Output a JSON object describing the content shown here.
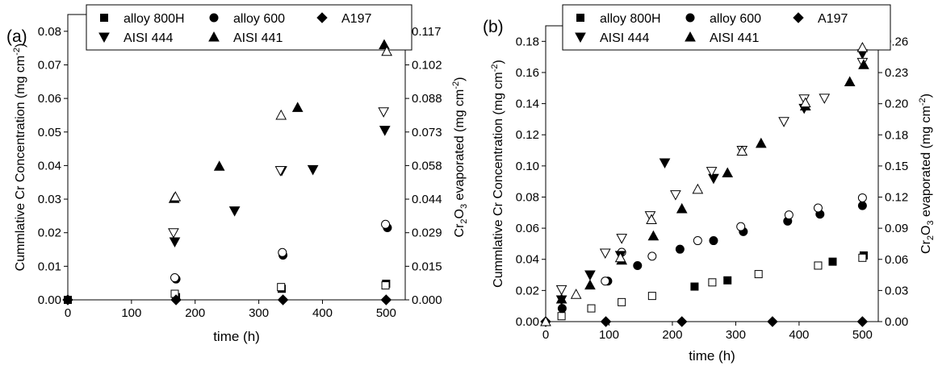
{
  "panels": [
    {
      "letter": "(a)",
      "legend": {
        "row1": [
          {
            "name": "alloy 800H",
            "marker": "square"
          },
          {
            "name": "alloy 600",
            "marker": "circle"
          },
          {
            "name": "A197",
            "marker": "diamond"
          }
        ],
        "row2": [
          {
            "name": "AISI 444",
            "marker": "tri-down"
          },
          {
            "name": "AISI 441",
            "marker": "tri-up"
          }
        ]
      }
    },
    {
      "letter": "(b)",
      "legend": {
        "row1": [
          {
            "name": "alloy 800H",
            "marker": "square"
          },
          {
            "name": "alloy 600",
            "marker": "circle"
          },
          {
            "name": "A197",
            "marker": "diamond"
          }
        ],
        "row2": [
          {
            "name": "AISI 444",
            "marker": "tri-down"
          },
          {
            "name": "AISI 441",
            "marker": "tri-up"
          }
        ]
      }
    }
  ],
  "chart_data": [
    {
      "type": "scatter",
      "panel": "(a)",
      "xlabel": "time (h)",
      "ylabel": "Cummlative Cr Concentration (mg cm",
      "ylabel_sup": "-2",
      "ylabel_end": ")",
      "y2label_prefix": "Cr",
      "y2label_sub": "2",
      "y2label_mid": "O",
      "y2label_sub2": "3",
      "y2label_suffix": " evaporated (mg cm",
      "y2label_sup": "-2",
      "y2label_end": ")",
      "xlim": [
        0,
        530
      ],
      "ylim": [
        0,
        0.085
      ],
      "y2lim": [
        0,
        0.1241
      ],
      "xticks": [
        "0",
        "100",
        "200",
        "300",
        "400",
        "500"
      ],
      "xtick_values": [
        0,
        100,
        200,
        300,
        400,
        500
      ],
      "yticks": [
        "0.00",
        "0.01",
        "0.02",
        "0.03",
        "0.04",
        "0.05",
        "0.06",
        "0.07",
        "0.08"
      ],
      "ytick_values": [
        0,
        0.01,
        0.02,
        0.03,
        0.04,
        0.05,
        0.06,
        0.07,
        0.08
      ],
      "y2ticks": [
        "0.000",
        "0.015",
        "0.029",
        "0.044",
        "0.058",
        "0.073",
        "0.088",
        "0.102",
        "0.117"
      ],
      "y2tick_values": [
        0,
        0.0146,
        0.0292,
        0.0438,
        0.0584,
        0.073,
        0.0876,
        0.1022,
        0.1168
      ],
      "legend_position": "top",
      "series": [
        {
          "name": "alloy 800H",
          "marker": "square",
          "filled": true,
          "x": [
            0,
            170,
            336,
            500
          ],
          "y": [
            0,
            0.0008,
            0.0033,
            0.0048
          ]
        },
        {
          "name": "alloy 800H",
          "marker": "square",
          "filled": false,
          "x": [
            168,
            335,
            499
          ],
          "y": [
            0.0018,
            0.0038,
            0.0043
          ]
        },
        {
          "name": "alloy 600",
          "marker": "circle",
          "filled": true,
          "x": [
            170,
            338,
            502
          ],
          "y": [
            0.0062,
            0.0133,
            0.0215
          ]
        },
        {
          "name": "alloy 600",
          "marker": "circle",
          "filled": false,
          "x": [
            168,
            337,
            499
          ],
          "y": [
            0.0066,
            0.0141,
            0.0225
          ]
        },
        {
          "name": "A197",
          "marker": "diamond",
          "filled": true,
          "x": [
            0,
            170,
            338,
            500
          ],
          "y": [
            0,
            0,
            0,
            0
          ]
        },
        {
          "name": "AISI 444",
          "marker": "tri-down",
          "filled": true,
          "x": [
            168,
            262,
            336,
            385,
            498
          ],
          "y": [
            0.0173,
            0.0265,
            0.0385,
            0.0388,
            0.0505
          ]
        },
        {
          "name": "AISI 444",
          "marker": "tri-down",
          "filled": false,
          "x": [
            166,
            334,
            496
          ],
          "y": [
            0.02,
            0.0385,
            0.056
          ]
        },
        {
          "name": "AISI 441",
          "marker": "tri-up",
          "filled": true,
          "x": [
            167,
            238,
            361,
            497
          ],
          "y": [
            0.0302,
            0.0398,
            0.0573,
            0.076
          ]
        },
        {
          "name": "AISI 441",
          "marker": "tri-up",
          "filled": false,
          "x": [
            169,
            335,
            501
          ],
          "y": [
            0.0307,
            0.055,
            0.074
          ]
        }
      ]
    },
    {
      "type": "scatter",
      "panel": "(b)",
      "xlabel": "time (h)",
      "ylabel": "Cummlative Cr Concentration (mg cm",
      "ylabel_sup": "-2",
      "ylabel_end": ")",
      "y2label_prefix": "Cr",
      "y2label_sub": "2",
      "y2label_mid": "O",
      "y2label_sub2": "3",
      "y2label_suffix": " evaporated (mg cm",
      "y2label_sup": "-2",
      "y2label_end": ")",
      "xlim": [
        0,
        525
      ],
      "ylim": [
        0,
        0.19
      ],
      "y2lim": [
        0,
        0.2775
      ],
      "xticks": [
        "0",
        "100",
        "200",
        "300",
        "400",
        "500"
      ],
      "xtick_values": [
        0,
        100,
        200,
        300,
        400,
        500
      ],
      "yticks": [
        "0.00",
        "0.02",
        "0.04",
        "0.06",
        "0.08",
        "0.10",
        "0.12",
        "0.14",
        "0.16",
        "0.18"
      ],
      "ytick_values": [
        0,
        0.02,
        0.04,
        0.06,
        0.08,
        0.1,
        0.12,
        0.14,
        0.16,
        0.18
      ],
      "y2ticks": [
        "0.00",
        "0.03",
        "0.06",
        "0.09",
        "0.12",
        "0.15",
        "0.18",
        "0.20",
        "0.23",
        "0.26"
      ],
      "y2tick_values": [
        0,
        0.0292,
        0.0584,
        0.0876,
        0.1168,
        0.146,
        0.1752,
        0.2044,
        0.2336,
        0.2628
      ],
      "legend_position": "top",
      "series": [
        {
          "name": "alloy 800H",
          "marker": "square",
          "filled": true,
          "x": [
            235,
            287,
            453,
            502
          ],
          "y": [
            0.0225,
            0.0265,
            0.0385,
            0.0425
          ]
        },
        {
          "name": "alloy 800H",
          "marker": "square",
          "filled": false,
          "x": [
            25,
            72,
            120,
            168,
            263,
            336,
            430,
            500
          ],
          "y": [
            0.0035,
            0.0085,
            0.0125,
            0.0165,
            0.0252,
            0.0305,
            0.036,
            0.041
          ]
        },
        {
          "name": "alloy 600",
          "marker": "circle",
          "filled": true,
          "x": [
            26,
            98,
            145,
            212,
            265,
            312,
            382,
            433,
            500
          ],
          "y": [
            0.0085,
            0.026,
            0.036,
            0.0465,
            0.052,
            0.0578,
            0.0645,
            0.069,
            0.0745
          ]
        },
        {
          "name": "alloy 600",
          "marker": "circle",
          "filled": false,
          "x": [
            94,
            120,
            168,
            240,
            308,
            384,
            430,
            500
          ],
          "y": [
            0.026,
            0.0445,
            0.042,
            0.052,
            0.061,
            0.0685,
            0.073,
            0.0795
          ]
        },
        {
          "name": "A197",
          "marker": "diamond",
          "filled": true,
          "x": [
            0,
            95,
            215,
            358,
            500
          ],
          "y": [
            0,
            0,
            0,
            0,
            0
          ]
        },
        {
          "name": "AISI 444",
          "marker": "tri-down",
          "filled": true,
          "x": [
            25,
            70,
            118,
            188,
            265,
            408,
            500
          ],
          "y": [
            0.014,
            0.03,
            0.0425,
            0.102,
            0.092,
            0.137,
            0.172
          ]
        },
        {
          "name": "AISI 444",
          "marker": "tri-down",
          "filled": false,
          "x": [
            25,
            94,
            120,
            165,
            205,
            262,
            310,
            376,
            408,
            440,
            500
          ],
          "y": [
            0.0205,
            0.044,
            0.0535,
            0.068,
            0.0815,
            0.0965,
            0.11,
            0.1285,
            0.143,
            0.1435,
            0.1665
          ]
        },
        {
          "name": "AISI 441",
          "marker": "tri-up",
          "filled": true,
          "x": [
            25,
            70,
            120,
            170,
            215,
            287,
            340,
            410,
            480,
            502
          ],
          "y": [
            0.0145,
            0.0235,
            0.0395,
            0.055,
            0.0725,
            0.0955,
            0.1145,
            0.1385,
            0.154,
            0.165
          ]
        },
        {
          "name": "AISI 441",
          "marker": "tri-up",
          "filled": false,
          "x": [
            0,
            48,
            118,
            167,
            240,
            310,
            410,
            500
          ],
          "y": [
            0,
            0.0175,
            0.041,
            0.0655,
            0.085,
            0.1095,
            0.1405,
            0.176
          ]
        }
      ]
    }
  ]
}
